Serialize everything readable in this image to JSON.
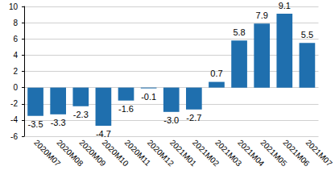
{
  "chart_data": {
    "type": "bar",
    "categories": [
      "2020M07",
      "2020M08",
      "2020M09",
      "2020M10",
      "2020M11",
      "2020M12",
      "2021M01",
      "2021M02",
      "2021M03",
      "2021M04",
      "2021M05",
      "2021M06",
      "2021M07"
    ],
    "values": [
      -3.5,
      -3.3,
      -2.3,
      -4.7,
      -1.6,
      -0.1,
      -3.0,
      -2.7,
      0.7,
      5.8,
      7.9,
      9.1,
      5.5
    ],
    "value_labels": [
      "-3.5",
      "-3.3",
      "-2.3",
      "-4.7",
      "-1.6",
      "-0.1",
      "-3.0",
      "-2.7",
      "0.7",
      "5.8",
      "7.9",
      "9.1",
      "5.5"
    ],
    "color": "#1f6fae",
    "ylim": [
      -6,
      10
    ],
    "yticks": [
      -6,
      -4,
      -2,
      0,
      2,
      4,
      6,
      8,
      10
    ],
    "grid": true,
    "data_labels": true
  }
}
